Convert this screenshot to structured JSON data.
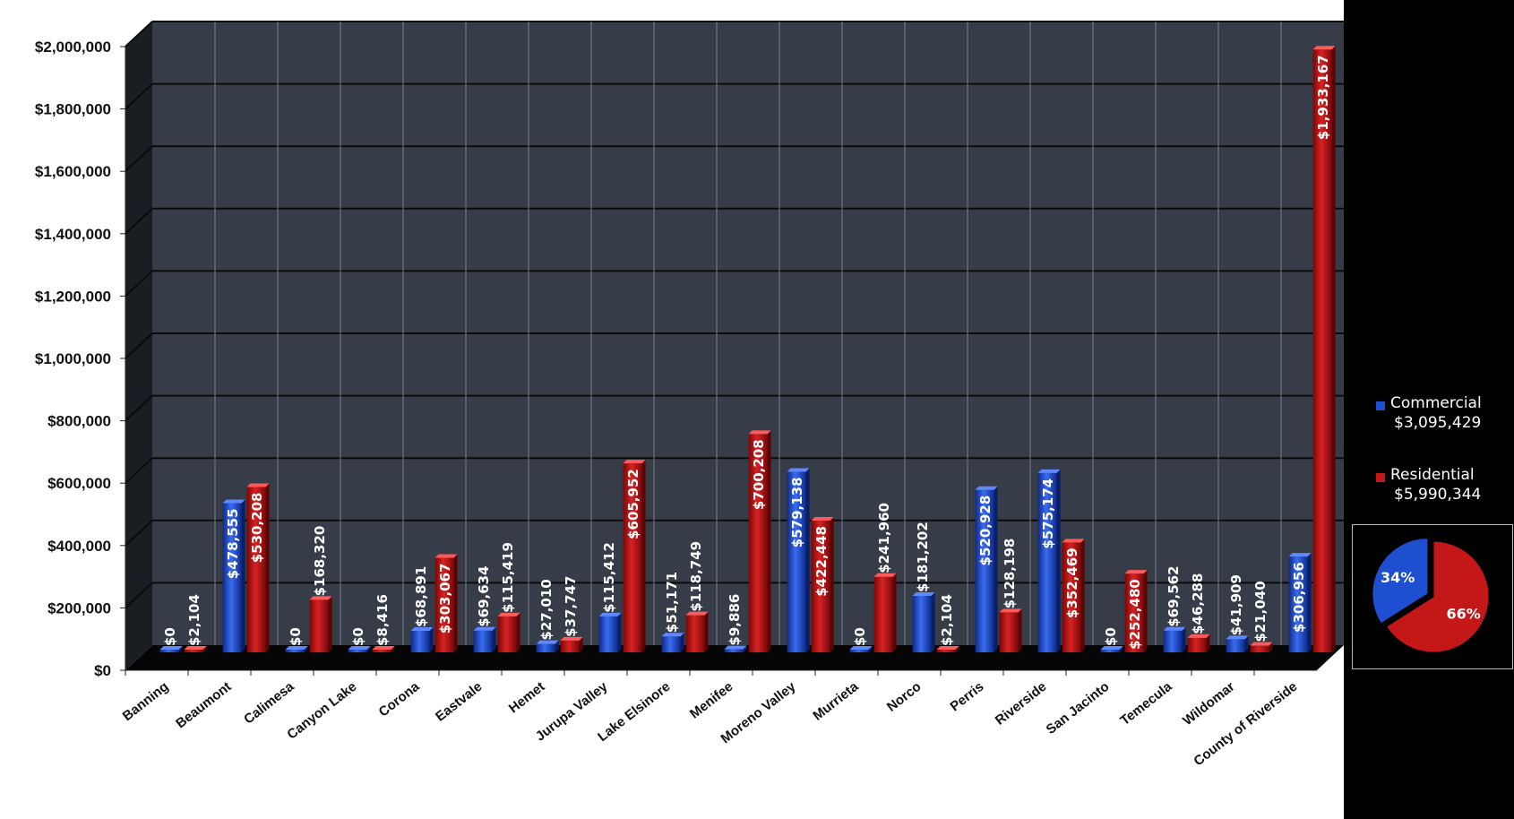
{
  "chart_data": {
    "type": "bar",
    "categories": [
      "Banning",
      "Beaumont",
      "Calimesa",
      "Canyon Lake",
      "Corona",
      "Eastvale",
      "Hemet",
      "Jurupa Valley",
      "Lake Elsinore",
      "Menifee",
      "Moreno Valley",
      "Murrieta",
      "Norco",
      "Perris",
      "Riverside",
      "San Jacinto",
      "Temecula",
      "Wildomar",
      "County of Riverside"
    ],
    "series": [
      {
        "name": "Commercial",
        "color": "#1f4fd1",
        "values": [
          0,
          478555,
          0,
          0,
          68891,
          69634,
          27010,
          115412,
          51171,
          9886,
          579138,
          0,
          181202,
          520928,
          575174,
          0,
          69562,
          41909,
          306956
        ],
        "labels": [
          "$0",
          "$478,555",
          "$0",
          "$0",
          "$68,891",
          "$69,634",
          "$27,010",
          "$115,412",
          "$51,171",
          "$9,886",
          "$579,138",
          "$0",
          "$181,202",
          "$520,928",
          "$575,174",
          "$0",
          "$69,562",
          "$41,909",
          "$306,956"
        ]
      },
      {
        "name": "Residential",
        "color": "#c41818",
        "values": [
          2104,
          530208,
          168320,
          8416,
          303067,
          115419,
          37747,
          605952,
          118749,
          700208,
          422448,
          241960,
          2104,
          128198,
          352469,
          252480,
          46288,
          21040,
          1933167
        ],
        "labels": [
          "$2,104",
          "$530,208",
          "$168,320",
          "$8,416",
          "$303,067",
          "$115,419",
          "$37,747",
          "$605,952",
          "$118,749",
          "$700,208",
          "$422,448",
          "$241,960",
          "$2,104",
          "$128,198",
          "$352,469",
          "$252,480",
          "$46,288",
          "$21,040",
          "$1,933,167"
        ]
      }
    ],
    "ylim": [
      0,
      2000000
    ],
    "yticks": [
      0,
      200000,
      400000,
      600000,
      800000,
      1000000,
      1200000,
      1400000,
      1600000,
      1800000,
      2000000
    ],
    "ytick_labels": [
      "$0",
      "$200,000",
      "$400,000",
      "$600,000",
      "$800,000",
      "$1,000,000",
      "$1,200,000",
      "$1,400,000",
      "$1,600,000",
      "$1,800,000",
      "$2,000,000"
    ],
    "grid": true,
    "legend": {
      "placement": "right",
      "items": [
        {
          "name": "Commercial",
          "total": "$3,095,429",
          "color": "#1f4fd1"
        },
        {
          "name": "Residential",
          "total": "$5,990,344",
          "color": "#c41818"
        }
      ]
    },
    "pie": {
      "type": "pie",
      "slices": [
        {
          "name": "Commercial",
          "value": 34,
          "label": "34%",
          "color": "#1f4fd1"
        },
        {
          "name": "Residential",
          "value": 66,
          "label": "66%",
          "color": "#c41818"
        }
      ]
    }
  }
}
